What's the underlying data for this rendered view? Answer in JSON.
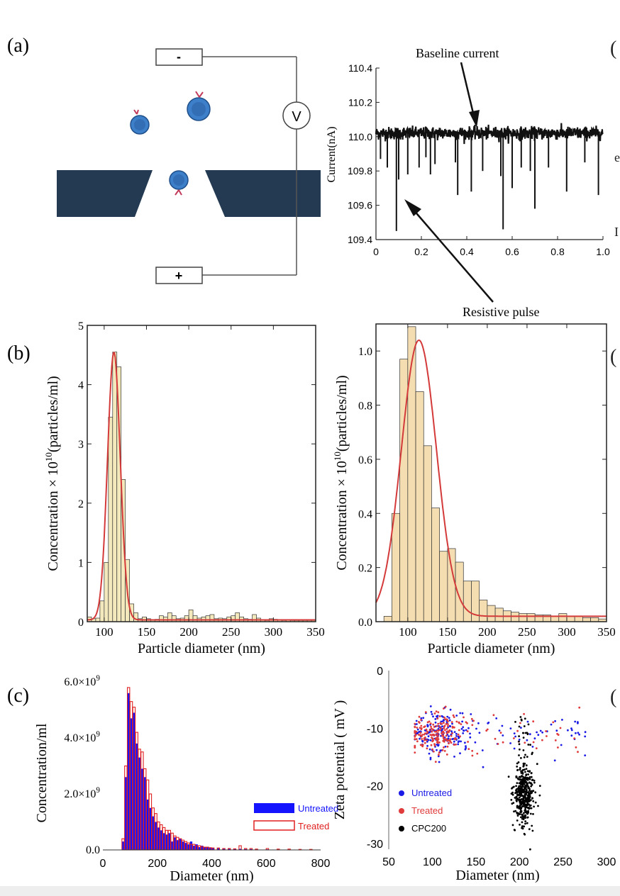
{
  "panel_labels": {
    "a": "(a)",
    "b": "(b)",
    "c": "(c)"
  },
  "schematic": {
    "minus": "-",
    "plus": "+",
    "meter": "V"
  },
  "edge_fragments": [
    "(",
    "e",
    "I",
    "(",
    "("
  ],
  "chart_data": [
    {
      "id": "current-trace",
      "type": "line",
      "title": "",
      "xlabel": "",
      "ylabel": "Current(nA)",
      "xlim": [
        0,
        1.0
      ],
      "ylim": [
        109.4,
        110.4
      ],
      "xticks": [
        "0",
        "0.2",
        "0.4",
        "0.6",
        "0.8",
        "1.0"
      ],
      "yticks": [
        "109.4",
        "109.6",
        "109.8",
        "110.0",
        "110.2",
        "110.4"
      ],
      "baseline": 110.02,
      "pulses": [
        {
          "x": 0.02,
          "y": 109.87
        },
        {
          "x": 0.05,
          "y": 109.82
        },
        {
          "x": 0.09,
          "y": 109.45
        },
        {
          "x": 0.1,
          "y": 109.75
        },
        {
          "x": 0.14,
          "y": 109.78
        },
        {
          "x": 0.19,
          "y": 109.82
        },
        {
          "x": 0.22,
          "y": 109.88
        },
        {
          "x": 0.24,
          "y": 109.78
        },
        {
          "x": 0.26,
          "y": 109.84
        },
        {
          "x": 0.35,
          "y": 109.85
        },
        {
          "x": 0.36,
          "y": 109.66
        },
        {
          "x": 0.42,
          "y": 109.68
        },
        {
          "x": 0.47,
          "y": 109.8
        },
        {
          "x": 0.55,
          "y": 109.77
        },
        {
          "x": 0.56,
          "y": 109.46
        },
        {
          "x": 0.6,
          "y": 109.7
        },
        {
          "x": 0.64,
          "y": 109.82
        },
        {
          "x": 0.68,
          "y": 109.8
        },
        {
          "x": 0.7,
          "y": 109.58
        },
        {
          "x": 0.76,
          "y": 109.82
        },
        {
          "x": 0.84,
          "y": 109.68
        },
        {
          "x": 0.92,
          "y": 109.85
        },
        {
          "x": 0.98,
          "y": 109.66
        }
      ],
      "annotations": [
        "Baseline current",
        "Resistive pulse"
      ]
    },
    {
      "id": "size-dist-left",
      "type": "bar",
      "xlabel": "Particle diameter  (nm)",
      "ylabel": "Concentration ×  10^10(particles/ml)",
      "ylabel_parts": [
        "Concentration ×  10",
        "10",
        "(particles/ml)"
      ],
      "xlim": [
        80,
        350
      ],
      "ylim": [
        0,
        5
      ],
      "xticks": [
        "100",
        "150",
        "200",
        "250",
        "300",
        "350"
      ],
      "yticks": [
        "0",
        "1",
        "2",
        "3",
        "4",
        "5"
      ],
      "bin_width": 5,
      "bin_starts": [
        80,
        85,
        90,
        95,
        100,
        105,
        110,
        115,
        120,
        125,
        130,
        135,
        140,
        145,
        150,
        155,
        160,
        165,
        170,
        175,
        180,
        185,
        190,
        195,
        200,
        205,
        210,
        215,
        220,
        225,
        230,
        235,
        240,
        245,
        250,
        255,
        260,
        265,
        270,
        275,
        280,
        285,
        290,
        295,
        300,
        305,
        310,
        315,
        320,
        325,
        330,
        335,
        340,
        345
      ],
      "values": [
        0.08,
        0.05,
        0.06,
        0.35,
        1.0,
        3.45,
        4.55,
        4.3,
        2.4,
        1.05,
        0.3,
        0.15,
        0.05,
        0.08,
        0.05,
        0.03,
        0.04,
        0.1,
        0.08,
        0.15,
        0.1,
        0.05,
        0.06,
        0.1,
        0.2,
        0.1,
        0.06,
        0.08,
        0.1,
        0.12,
        0.05,
        0.06,
        0.05,
        0.08,
        0.1,
        0.15,
        0.08,
        0.05,
        0.04,
        0.12,
        0.06,
        0.03,
        0.02,
        0.05,
        0.04,
        0.03,
        0.02,
        0.03,
        0.02,
        0.02,
        0.02,
        0.02,
        0.02,
        0.02
      ],
      "fit": {
        "type": "gaussian",
        "peak": 4.55,
        "center": 111.5,
        "sigma": 7.5,
        "offset": 0.03
      }
    },
    {
      "id": "size-dist-right",
      "type": "bar",
      "xlabel": "Particle diameter  (nm)",
      "ylabel": "Concentration ×  10^10(particles/ml)",
      "ylabel_parts": [
        "Concentration ×  10",
        "10",
        "(particles/ml)"
      ],
      "xlim": [
        60,
        350
      ],
      "ylim": [
        0,
        1.1
      ],
      "xticks": [
        "100",
        "150",
        "200",
        "250",
        "300",
        "350"
      ],
      "yticks": [
        "0.0",
        "0.2",
        "0.4",
        "0.6",
        "0.8",
        "1.0"
      ],
      "bin_width": 10,
      "bin_starts": [
        60,
        70,
        80,
        90,
        100,
        110,
        120,
        130,
        140,
        150,
        160,
        170,
        180,
        190,
        200,
        210,
        220,
        230,
        240,
        250,
        260,
        270,
        280,
        290,
        300,
        310,
        320,
        330,
        340
      ],
      "values": [
        0.0,
        0.02,
        0.4,
        0.97,
        1.09,
        0.85,
        0.65,
        0.42,
        0.26,
        0.27,
        0.22,
        0.15,
        0.15,
        0.08,
        0.06,
        0.05,
        0.04,
        0.035,
        0.03,
        0.03,
        0.025,
        0.025,
        0.02,
        0.03,
        0.02,
        0.02,
        0.015,
        0.015,
        0.01
      ],
      "fit": {
        "type": "gaussian",
        "peak": 1.04,
        "center": 114,
        "sigma": 22,
        "offset": 0.02
      }
    },
    {
      "id": "concentration-histogram",
      "type": "bar",
      "xlabel": "Diameter  (nm)",
      "ylabel": "Concentration/ml",
      "xlim": [
        0,
        800
      ],
      "ylim": [
        0,
        6000000000.0
      ],
      "xticks": [
        "0",
        "200",
        "400",
        "600",
        "800"
      ],
      "yticks": [
        "0.0",
        "2.0×10^9",
        "4.0×10^9",
        "6.0×10^9"
      ],
      "ytick_parts": [
        [
          "0.0",
          ""
        ],
        [
          "2.0×10",
          "9"
        ],
        [
          "4.0×10",
          "9"
        ],
        [
          "6.0×10",
          "9"
        ]
      ],
      "bin_width": 10,
      "bin_starts": [
        70,
        80,
        90,
        100,
        110,
        120,
        130,
        140,
        150,
        160,
        170,
        180,
        190,
        200,
        210,
        220,
        230,
        240,
        250,
        260,
        270,
        280,
        290,
        300,
        310,
        320,
        330,
        340,
        350,
        360,
        370,
        380,
        390,
        400,
        420,
        440,
        460,
        480,
        500,
        520,
        540,
        560,
        600,
        640,
        680,
        720,
        760
      ],
      "series": [
        {
          "name": "Untreated",
          "color": "#1414ff",
          "values": [
            300000000.0,
            2600000000.0,
            5600000000.0,
            4700000000.0,
            4900000000.0,
            3800000000.0,
            3300000000.0,
            2900000000.0,
            2600000000.0,
            1800000000.0,
            1500000000.0,
            1200000000.0,
            1000000000.0,
            800000000.0,
            700000000.0,
            600000000.0,
            550000000.0,
            600000000.0,
            300000000.0,
            450000000.0,
            350000000.0,
            400000000.0,
            300000000.0,
            250000000.0,
            200000000.0,
            300000000.0,
            150000000.0,
            200000000.0,
            100000000.0,
            150000000.0,
            100000000.0,
            100000000.0,
            80000000.0,
            80000000.0,
            60000000.0,
            50000000.0,
            50000000.0,
            40000000.0,
            40000000.0,
            30000000.0,
            30000000.0,
            20000000.0,
            20000000.0,
            20000000.0,
            10000000.0,
            10000000.0,
            10000000.0
          ]
        },
        {
          "name": "Treated",
          "color": "#e02020",
          "values": [
            400000000.0,
            3000000000.0,
            5800000000.0,
            5300000000.0,
            5100000000.0,
            4200000000.0,
            3600000000.0,
            3500000000.0,
            2900000000.0,
            2500000000.0,
            2000000000.0,
            1500000000.0,
            1300000000.0,
            1000000000.0,
            900000000.0,
            800000000.0,
            700000000.0,
            700000000.0,
            600000000.0,
            500000000.0,
            450000000.0,
            400000000.0,
            350000000.0,
            300000000.0,
            250000000.0,
            200000000.0,
            200000000.0,
            150000000.0,
            150000000.0,
            120000000.0,
            100000000.0,
            100000000.0,
            80000000.0,
            70000000.0,
            70000000.0,
            50000000.0,
            50000000.0,
            40000000.0,
            150000000.0,
            50000000.0,
            50000000.0,
            30000000.0,
            50000000.0,
            30000000.0,
            30000000.0,
            20000000.0,
            20000000.0
          ]
        }
      ],
      "legend": "bottom-right"
    },
    {
      "id": "zeta-scatter",
      "type": "scatter",
      "xlabel": "Diameter  (nm)",
      "ylabel": "Zeta potential ( mV )",
      "xlim": [
        50,
        300
      ],
      "ylim": [
        -31,
        0
      ],
      "xticks": [
        "50",
        "100",
        "150",
        "200",
        "250",
        "300"
      ],
      "yticks": [
        "0",
        "-10",
        "-20",
        "-30"
      ],
      "series": [
        {
          "name": "Untreated",
          "color": "#1a1ae6",
          "cluster": {
            "x_range": [
              80,
              280
            ],
            "x_mode": 110,
            "y_mean": -10.8,
            "y_sd": 1.7,
            "n": 220
          }
        },
        {
          "name": "Treated",
          "color": "#e03a3a",
          "cluster": {
            "x_range": [
              80,
              275
            ],
            "x_mode": 105,
            "y_mean": -11.0,
            "y_sd": 1.8,
            "n": 220
          }
        },
        {
          "name": "CPC200",
          "color": "#000000",
          "cluster": {
            "x_mean": 205,
            "x_sd": 5.5,
            "y_mean": -21.5,
            "y_sd": 2.6,
            "n": 420,
            "extra": {
              "x_range": [
                195,
                215
              ],
              "y_range": [
                -15,
                -8
              ],
              "n": 25
            }
          }
        }
      ],
      "legend": "bottom-left"
    }
  ]
}
